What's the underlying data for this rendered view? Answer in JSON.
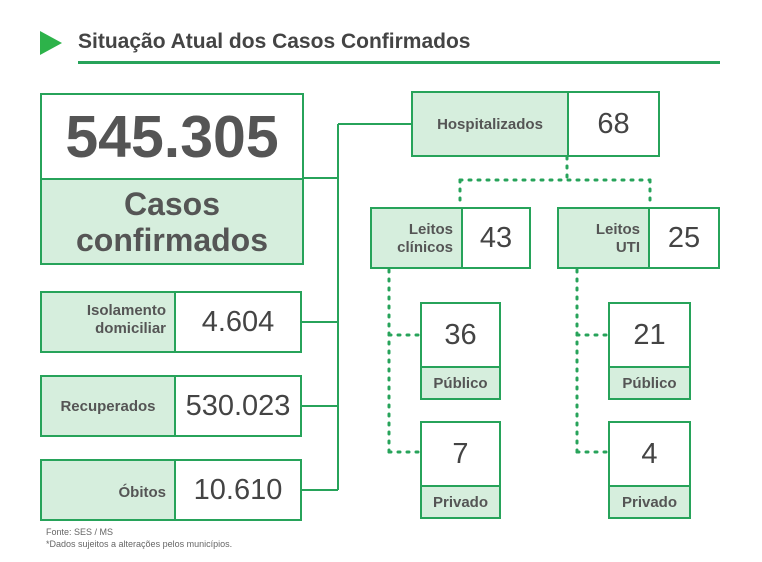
{
  "title": "Situação Atual dos Casos Confirmados",
  "confirmed": {
    "value": "545.305",
    "label_line1": "Casos",
    "label_line2": "confirmados"
  },
  "isolamento": {
    "label_line1": "Isolamento",
    "label_line2": "domiciliar",
    "value": "4.604"
  },
  "recuperados": {
    "label": "Recuperados",
    "value": "530.023"
  },
  "obitos": {
    "label": "Óbitos",
    "value": "10.610"
  },
  "hospitalizados": {
    "label": "Hospitalizados",
    "value": "68"
  },
  "leitos_clinicos": {
    "label_line1": "Leitos",
    "label_line2": "clínicos",
    "value": "43",
    "publico": {
      "value": "36",
      "label": "Público"
    },
    "privado": {
      "value": "7",
      "label": "Privado"
    }
  },
  "leitos_uti": {
    "label_line1": "Leitos",
    "label_line2": "UTI",
    "value": "25",
    "publico": {
      "value": "21",
      "label": "Público"
    },
    "privado": {
      "value": "4",
      "label": "Privado"
    }
  },
  "footnote": {
    "source": "Fonte: SES / MS",
    "note": "*Dados sujeitos a alterações pelos municípios."
  },
  "colors": {
    "green": "#27a35a",
    "light_green": "#d6eedd",
    "arrow": "#2db34a"
  }
}
